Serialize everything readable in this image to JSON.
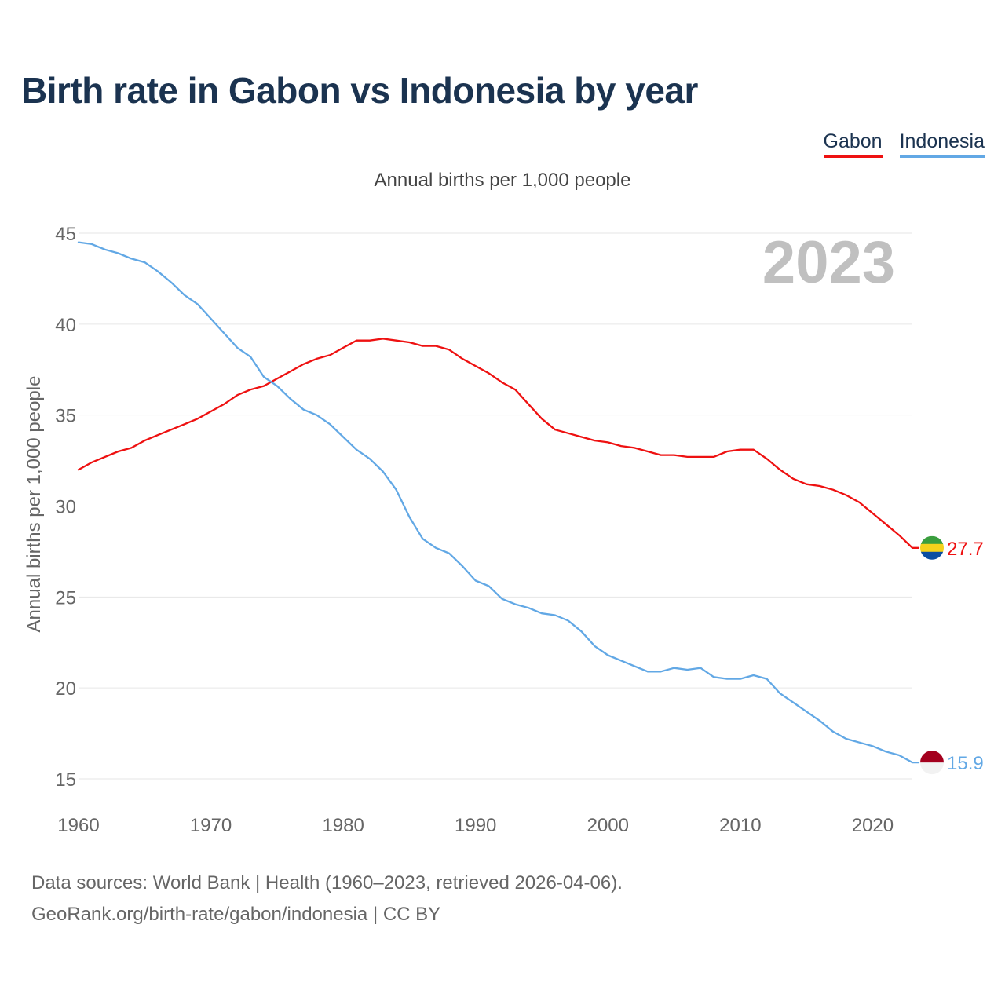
{
  "title": "Birth rate in Gabon vs Indonesia by year",
  "legend": [
    {
      "name": "Gabon",
      "color": "#ee1111"
    },
    {
      "name": "Indonesia",
      "color": "#62a8e5"
    }
  ],
  "footer": {
    "line1": "Data sources: World Bank | Health (1960–2023, retrieved 2026-04-06).",
    "line2": "GeoRank.org/birth-rate/gabon/indonesia | CC BY"
  },
  "chart_data": {
    "type": "line",
    "title": "Annual births per 1,000 people",
    "ylabel": "Annual births per 1,000 people",
    "xlabel": "",
    "year_label": "2023",
    "xlim": [
      1960,
      2023
    ],
    "ylim": [
      15,
      45
    ],
    "xticks": [
      1960,
      1970,
      1980,
      1990,
      2000,
      2010,
      2020
    ],
    "yticks": [
      15,
      20,
      25,
      30,
      35,
      40,
      45
    ],
    "x": [
      1960,
      1961,
      1962,
      1963,
      1964,
      1965,
      1966,
      1967,
      1968,
      1969,
      1970,
      1971,
      1972,
      1973,
      1974,
      1975,
      1976,
      1977,
      1978,
      1979,
      1980,
      1981,
      1982,
      1983,
      1984,
      1985,
      1986,
      1987,
      1988,
      1989,
      1990,
      1991,
      1992,
      1993,
      1994,
      1995,
      1996,
      1997,
      1998,
      1999,
      2000,
      2001,
      2002,
      2003,
      2004,
      2005,
      2006,
      2007,
      2008,
      2009,
      2010,
      2011,
      2012,
      2013,
      2014,
      2015,
      2016,
      2017,
      2018,
      2019,
      2020,
      2021,
      2022,
      2023
    ],
    "series": [
      {
        "name": "Gabon",
        "color": "#ee1111",
        "end_label": "27.7",
        "values": [
          32.0,
          32.4,
          32.7,
          33.0,
          33.2,
          33.6,
          33.9,
          34.2,
          34.5,
          34.8,
          35.2,
          35.6,
          36.1,
          36.4,
          36.6,
          37.0,
          37.4,
          37.8,
          38.1,
          38.3,
          38.7,
          39.1,
          39.1,
          39.2,
          39.1,
          39.0,
          38.8,
          38.8,
          38.6,
          38.1,
          37.7,
          37.3,
          36.8,
          36.4,
          35.6,
          34.8,
          34.2,
          34.0,
          33.8,
          33.6,
          33.5,
          33.3,
          33.2,
          33.0,
          32.8,
          32.8,
          32.7,
          32.7,
          32.7,
          33.0,
          33.1,
          33.1,
          32.6,
          32.0,
          31.5,
          31.2,
          31.1,
          30.9,
          30.6,
          30.2,
          29.6,
          29.0,
          28.4,
          27.7
        ]
      },
      {
        "name": "Indonesia",
        "color": "#62a8e5",
        "end_label": "15.9",
        "values": [
          44.5,
          44.4,
          44.1,
          43.9,
          43.6,
          43.4,
          42.9,
          42.3,
          41.6,
          41.1,
          40.3,
          39.5,
          38.7,
          38.2,
          37.1,
          36.6,
          35.9,
          35.3,
          35.0,
          34.5,
          33.8,
          33.1,
          32.6,
          31.9,
          30.9,
          29.4,
          28.2,
          27.7,
          27.4,
          26.7,
          25.9,
          25.6,
          24.9,
          24.6,
          24.4,
          24.1,
          24.0,
          23.7,
          23.1,
          22.3,
          21.8,
          21.5,
          21.2,
          20.9,
          20.9,
          21.1,
          21.0,
          21.1,
          20.6,
          20.5,
          20.5,
          20.7,
          20.5,
          19.7,
          19.2,
          18.7,
          18.2,
          17.6,
          17.2,
          17.0,
          16.8,
          16.5,
          16.3,
          15.9
        ]
      }
    ]
  }
}
